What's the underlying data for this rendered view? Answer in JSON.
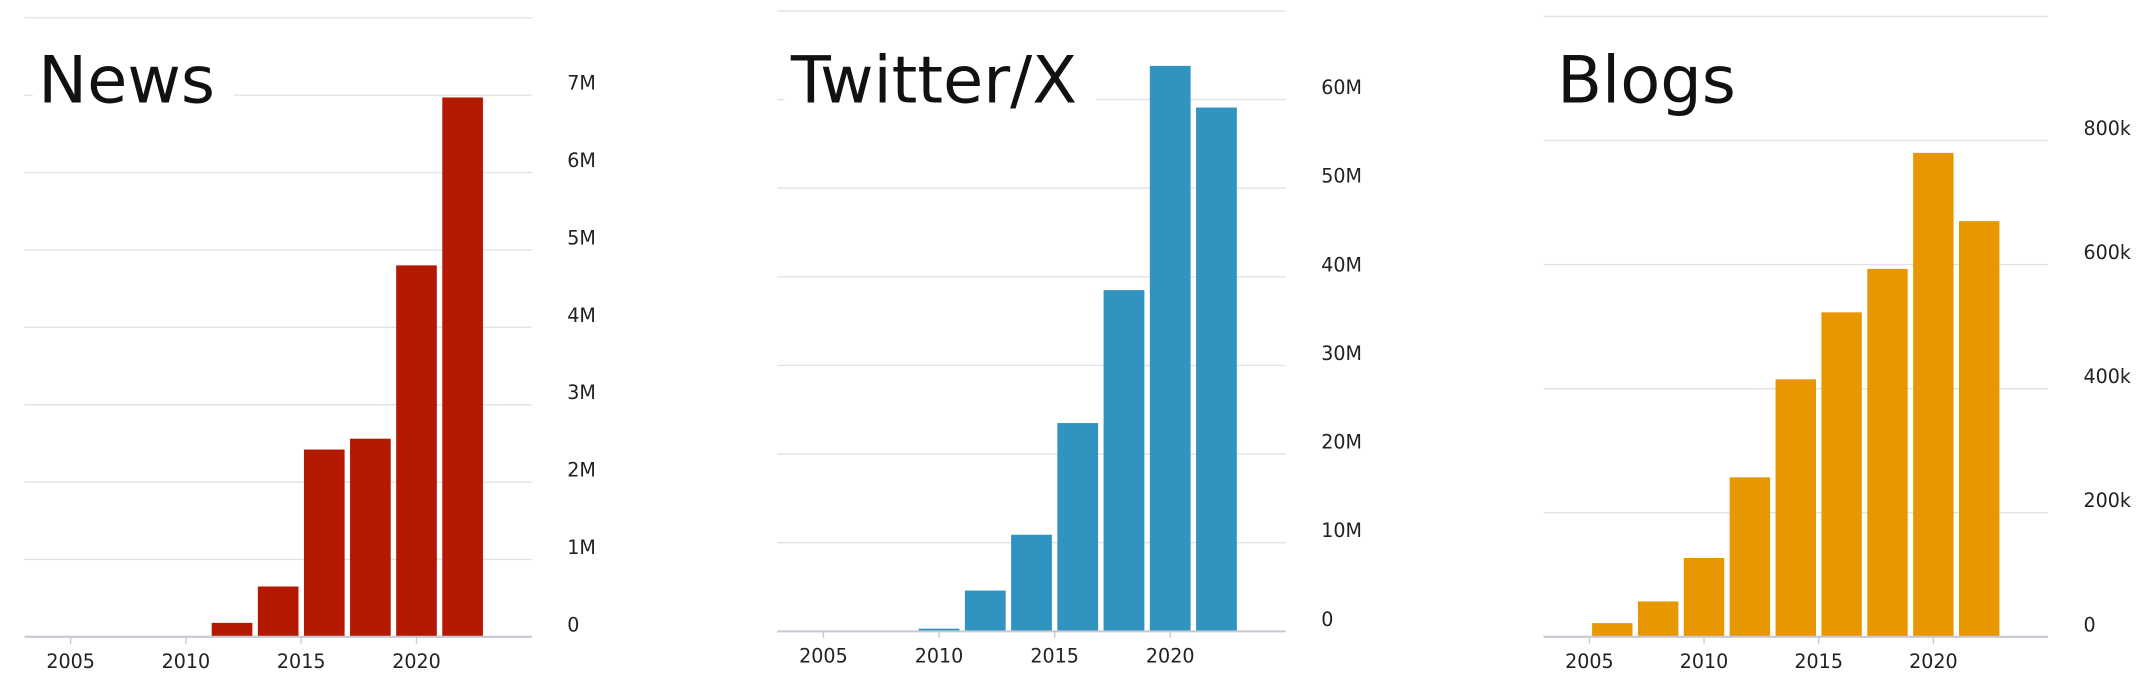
{
  "chart_data": [
    {
      "type": "histogram",
      "title": "News",
      "color": "#b31800",
      "bins": [
        2005,
        2007,
        2009,
        2011,
        2013,
        2015,
        2017,
        2019,
        2021,
        2023
      ],
      "values": [
        0,
        0,
        0,
        180000,
        650000,
        2420000,
        2560000,
        4800000,
        6970000
      ],
      "xlim": [
        2003,
        2025
      ],
      "xticks": [
        2005,
        2010,
        2015,
        2020
      ],
      "ylim": [
        0,
        8000000
      ],
      "yticks": [
        0,
        {
          "value": 1000000,
          "label": "1M"
        },
        {
          "value": 2000000,
          "label": "2M"
        },
        {
          "value": 3000000,
          "label": "3M"
        },
        {
          "value": 4000000,
          "label": "4M"
        },
        {
          "value": 5000000,
          "label": "5M"
        },
        {
          "value": 6000000,
          "label": "6M"
        },
        {
          "value": 7000000,
          "label": "7M"
        }
      ]
    },
    {
      "type": "histogram",
      "title": "Twitter/X",
      "color": "#3193bf",
      "bins": [
        2005,
        2007,
        2009,
        2011,
        2013,
        2015,
        2017,
        2019,
        2021,
        2023
      ],
      "values": [
        0,
        0,
        300000,
        4600000,
        10900000,
        23500000,
        38500000,
        63800000,
        59100000
      ],
      "xlim": [
        2003,
        2025
      ],
      "xticks": [
        2005,
        2010,
        2015,
        2020
      ],
      "ylim": [
        0,
        70000000
      ],
      "yticks": [
        0,
        {
          "value": 10000000,
          "label": "10M"
        },
        {
          "value": 20000000,
          "label": "20M"
        },
        {
          "value": 30000000,
          "label": "30M"
        },
        {
          "value": 40000000,
          "label": "40M"
        },
        {
          "value": 50000000,
          "label": "50M"
        },
        {
          "value": 60000000,
          "label": "60M"
        }
      ]
    },
    {
      "type": "histogram",
      "title": "Blogs",
      "color": "#e89700",
      "bins": [
        2005,
        2007,
        2009,
        2011,
        2013,
        2015,
        2017,
        2019,
        2021,
        2023
      ],
      "values": [
        22000,
        57000,
        127000,
        257000,
        415000,
        523000,
        593000,
        780000,
        670000
      ],
      "xlim": [
        2003,
        2025
      ],
      "xticks": [
        2005,
        2010,
        2015,
        2020
      ],
      "ylim": [
        0,
        1000000
      ],
      "yticks": [
        0,
        {
          "value": 200000,
          "label": "200k"
        },
        {
          "value": 400000,
          "label": "400k"
        },
        {
          "value": 600000,
          "label": "600k"
        },
        {
          "value": 800000,
          "label": "800k"
        }
      ]
    }
  ]
}
